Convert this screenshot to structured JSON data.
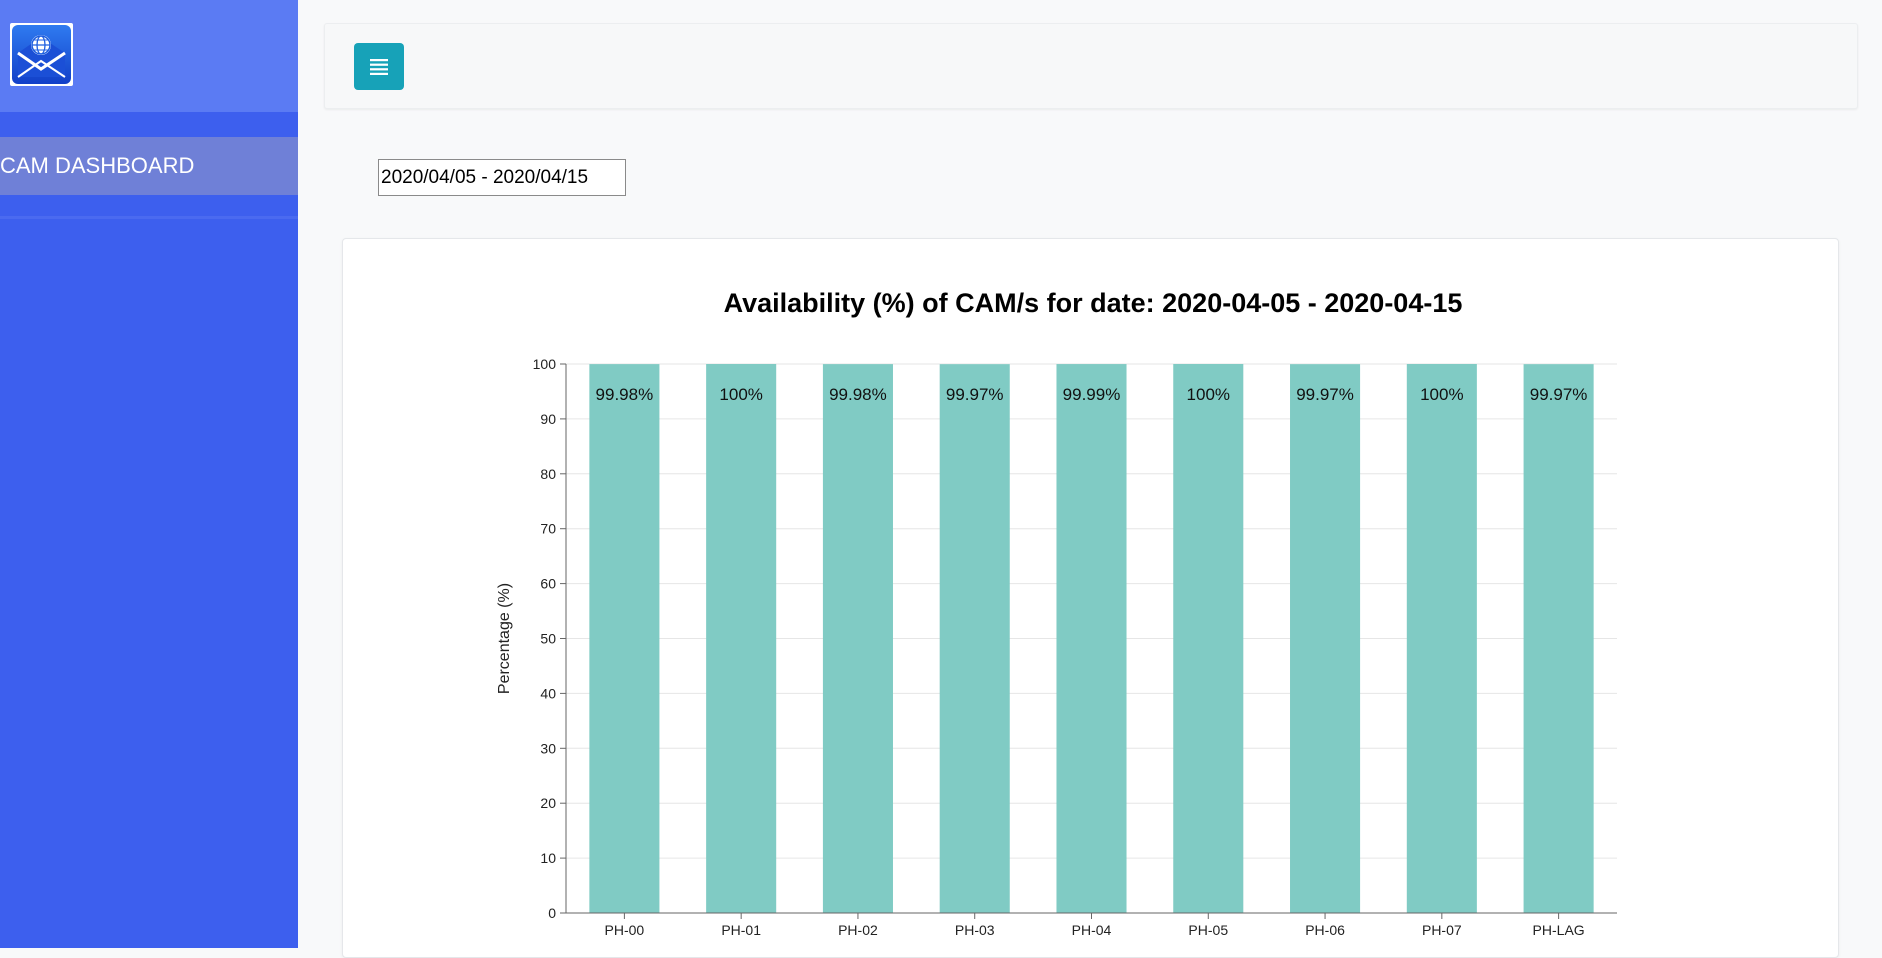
{
  "sidebar": {
    "logo_icon": "envelope-globe-logo",
    "bg_color": "#3d5fee",
    "items": [
      {
        "label": "CAM DASHBOARD"
      }
    ]
  },
  "header": {
    "menu_icon": "list-icon",
    "menu_button_color": "#17a2b8"
  },
  "filter": {
    "date_range_value": "2020/04/05 - 2020/04/15"
  },
  "chart_data": {
    "type": "bar",
    "title": "Availability (%) of CAM/s for date: 2020-04-05 - 2020-04-15",
    "xlabel": "",
    "ylabel": "Percentage (%)",
    "ylim": [
      0,
      100
    ],
    "yticks": [
      0,
      10,
      20,
      30,
      40,
      50,
      60,
      70,
      80,
      90,
      100
    ],
    "grid": true,
    "bar_color": "#80cbc4",
    "categories": [
      "PH-00",
      "PH-01",
      "PH-02",
      "PH-03",
      "PH-04",
      "PH-05",
      "PH-06",
      "PH-07",
      "PH-LAG"
    ],
    "values": [
      99.98,
      100,
      99.98,
      99.97,
      99.99,
      100,
      99.97,
      100,
      99.97
    ],
    "data_labels": [
      "99.98%",
      "100%",
      "99.98%",
      "99.97%",
      "99.99%",
      "100%",
      "99.97%",
      "100%",
      "99.97%"
    ]
  }
}
